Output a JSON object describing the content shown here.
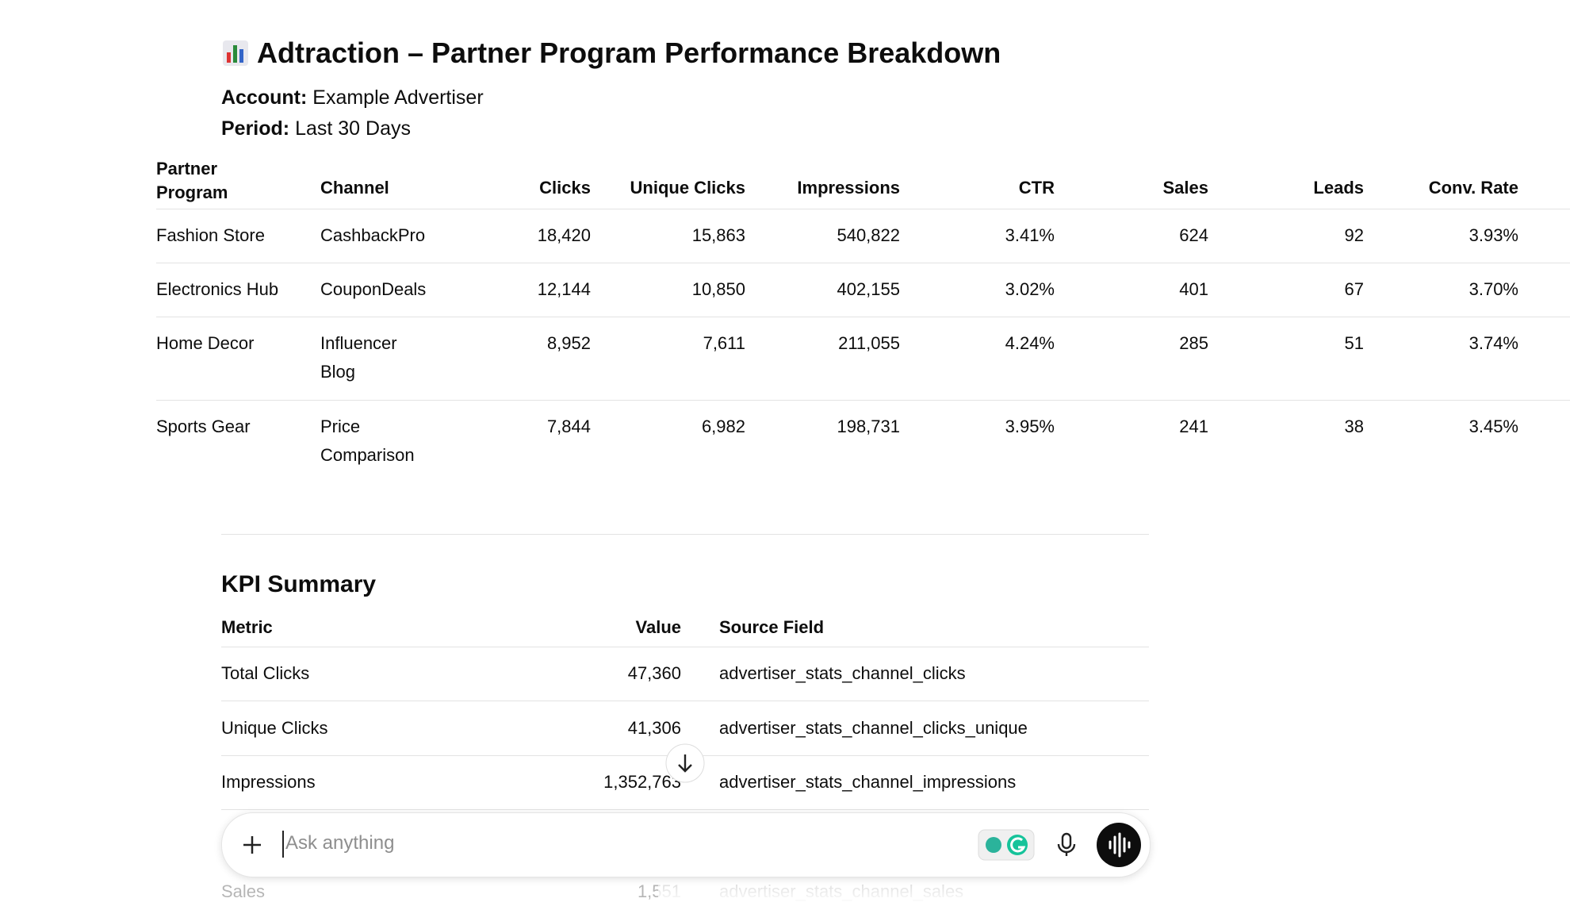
{
  "header": {
    "title": "Adtraction – Partner Program Performance Breakdown",
    "account_label": "Account:",
    "account_value": "Example Advertiser",
    "period_label": "Period:",
    "period_value": "Last 30 Days"
  },
  "table": {
    "columns": [
      "Partner Program",
      "Channel",
      "Clicks",
      "Unique Clicks",
      "Impressions",
      "CTR",
      "Sales",
      "Leads",
      "Conv. Rate"
    ],
    "rows": [
      [
        "Fashion Store",
        "CashbackPro",
        "18,420",
        "15,863",
        "540,822",
        "3.41%",
        "624",
        "92",
        "3.93%"
      ],
      [
        "Electronics Hub",
        "CouponDeals",
        "12,144",
        "10,850",
        "402,155",
        "3.02%",
        "401",
        "67",
        "3.70%"
      ],
      [
        "Home Decor",
        "Influencer Blog",
        "8,952",
        "7,611",
        "211,055",
        "4.24%",
        "285",
        "51",
        "3.74%"
      ],
      [
        "Sports Gear",
        "Price Comparison",
        "7,844",
        "6,982",
        "198,731",
        "3.95%",
        "241",
        "38",
        "3.45%"
      ]
    ]
  },
  "kpi": {
    "title": "KPI Summary",
    "columns": [
      "Metric",
      "Value",
      "Source Field"
    ],
    "rows": [
      [
        "Total Clicks",
        "47,360",
        "advertiser_stats_channel_clicks"
      ],
      [
        "Unique Clicks",
        "41,306",
        "advertiser_stats_channel_clicks_unique"
      ],
      [
        "Impressions",
        "1,352,763",
        "advertiser_stats_channel_impressions"
      ],
      [
        "Sales",
        "1,551",
        "advertiser_stats_channel_sales"
      ]
    ]
  },
  "composer": {
    "placeholder": "Ask anything"
  }
}
